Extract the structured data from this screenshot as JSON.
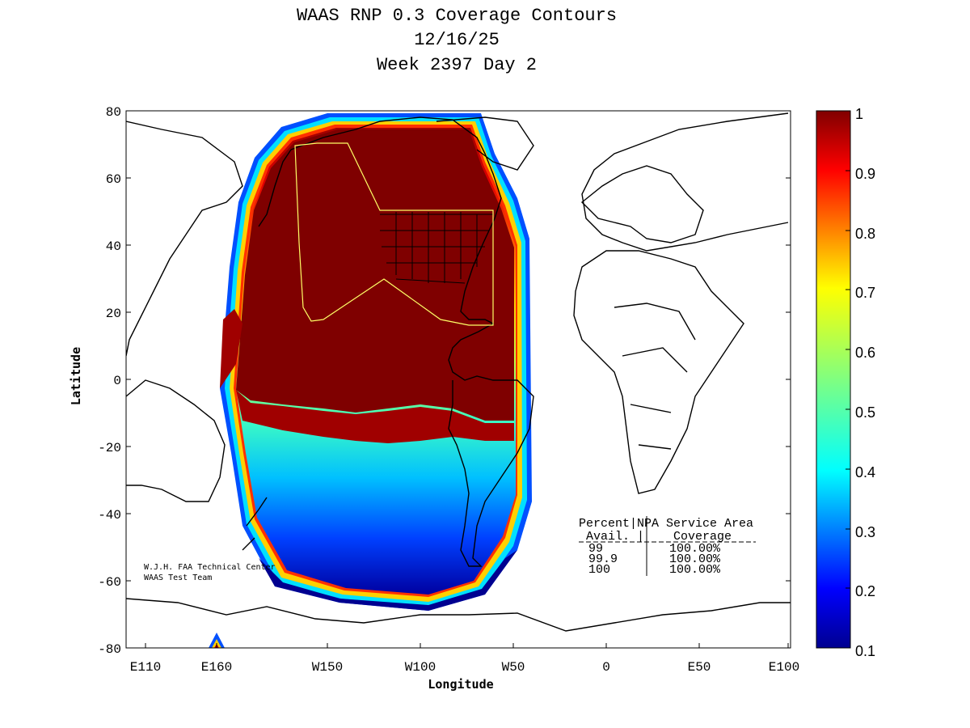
{
  "title": {
    "line1": "WAAS RNP 0.3 Coverage Contours",
    "line2": "12/16/25",
    "line3": "Week 2397 Day 2"
  },
  "axes": {
    "xlabel": "Longitude",
    "ylabel": "Latitude",
    "xticks": [
      "E110",
      "E160",
      "W150",
      "W100",
      "W50",
      "0",
      "E50",
      "E100"
    ],
    "yticks": [
      "80",
      "60",
      "40",
      "20",
      "0",
      "-20",
      "-40",
      "-60",
      "-80"
    ]
  },
  "colorbar": {
    "ticks": [
      "1",
      "0.9",
      "0.8",
      "0.7",
      "0.6",
      "0.5",
      "0.4",
      "0.3",
      "0.2",
      "0.1"
    ],
    "range": [
      0.1,
      1.0
    ]
  },
  "credit": {
    "line1": "W.J.H. FAA Technical Center",
    "line2": "WAAS Test Team"
  },
  "table": {
    "header1": "Percent|NPA Service Area",
    "header2": " Avail. |    Coverage   ",
    "rows": [
      {
        "avail": "99",
        "coverage": "100.00%"
      },
      {
        "avail": "99.9",
        "coverage": "100.00%"
      },
      {
        "avail": "100",
        "coverage": "100.00%"
      }
    ]
  },
  "colors": {
    "high": "#800000",
    "low": "#000090"
  }
}
